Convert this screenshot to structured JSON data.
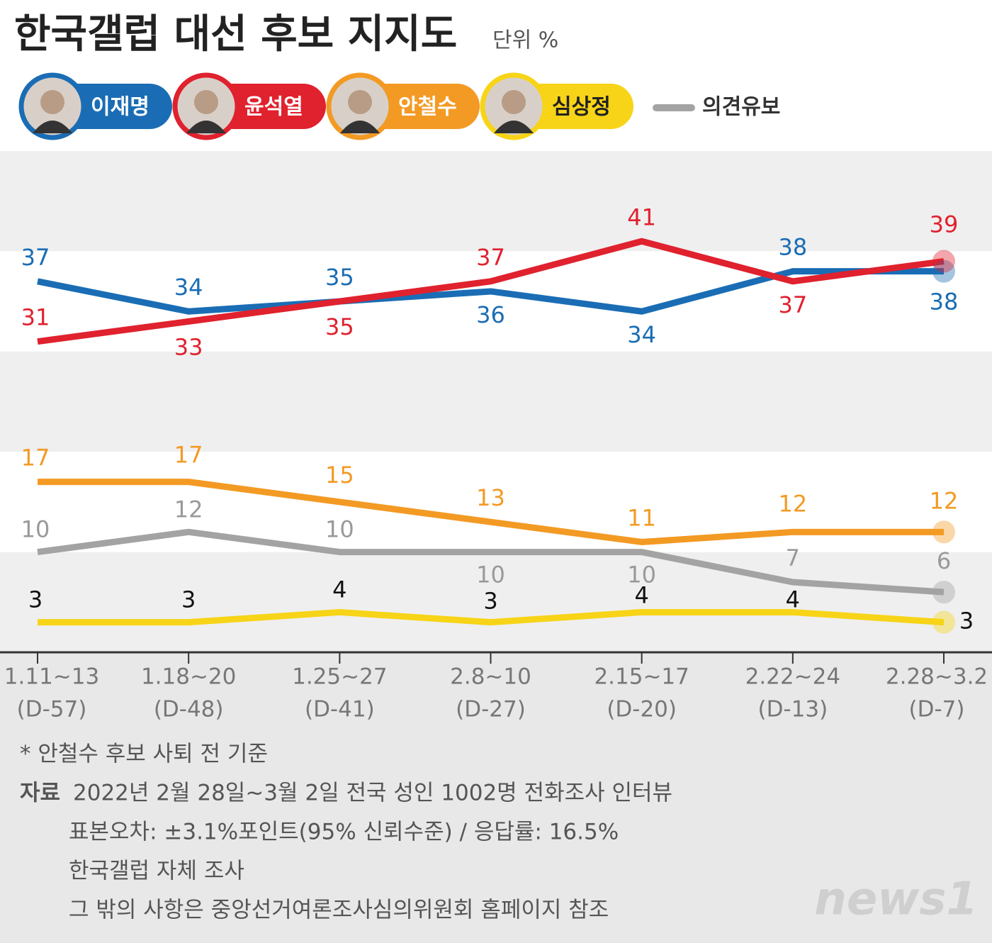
{
  "chart_data": {
    "type": "line",
    "title": "한국갤럽 대선 후보 지지도",
    "unit_label": "단위 %",
    "categories": [
      "1.11~13",
      "1.18~20",
      "1.25~27",
      "2.8~10",
      "2.15~17",
      "2.22~24",
      "2.28~3.2"
    ],
    "category_sublabels": [
      "(D-57)",
      "(D-48)",
      "(D-41)",
      "(D-27)",
      "(D-20)",
      "(D-13)",
      "(D-7)"
    ],
    "ylim": [
      0,
      50
    ],
    "grid": "bands",
    "series": [
      {
        "name": "이재명",
        "color": "#1a6db4",
        "values": [
          37,
          34,
          35,
          36,
          34,
          38,
          38
        ]
      },
      {
        "name": "윤석열",
        "color": "#e0212e",
        "values": [
          31,
          33,
          35,
          37,
          41,
          37,
          39
        ]
      },
      {
        "name": "안철수",
        "color": "#f39a24",
        "values": [
          17,
          17,
          15,
          13,
          11,
          12,
          12
        ]
      },
      {
        "name": "심상정",
        "color": "#f7d417",
        "values": [
          3,
          3,
          4,
          3,
          4,
          4,
          3
        ]
      },
      {
        "name": "의견유보",
        "color": "#a3a3a3",
        "values": [
          10,
          12,
          10,
          10,
          10,
          7,
          6
        ]
      }
    ]
  },
  "footer": {
    "note": "* 안철수 후보 사퇴 전 기준",
    "source_label": "자료",
    "source_lines": [
      "2022년 2월 28일~3월 2일 전국 성인 1002명 전화조사 인터뷰",
      "표본오차: ±3.1%포인트(95% 신뢰수준) / 응답률: 16.5%",
      "한국갤럽 자체 조사",
      "그 밖의 사항은 중앙선거여론조사심의위원회 홈페이지 참조"
    ],
    "logo": "news1"
  }
}
